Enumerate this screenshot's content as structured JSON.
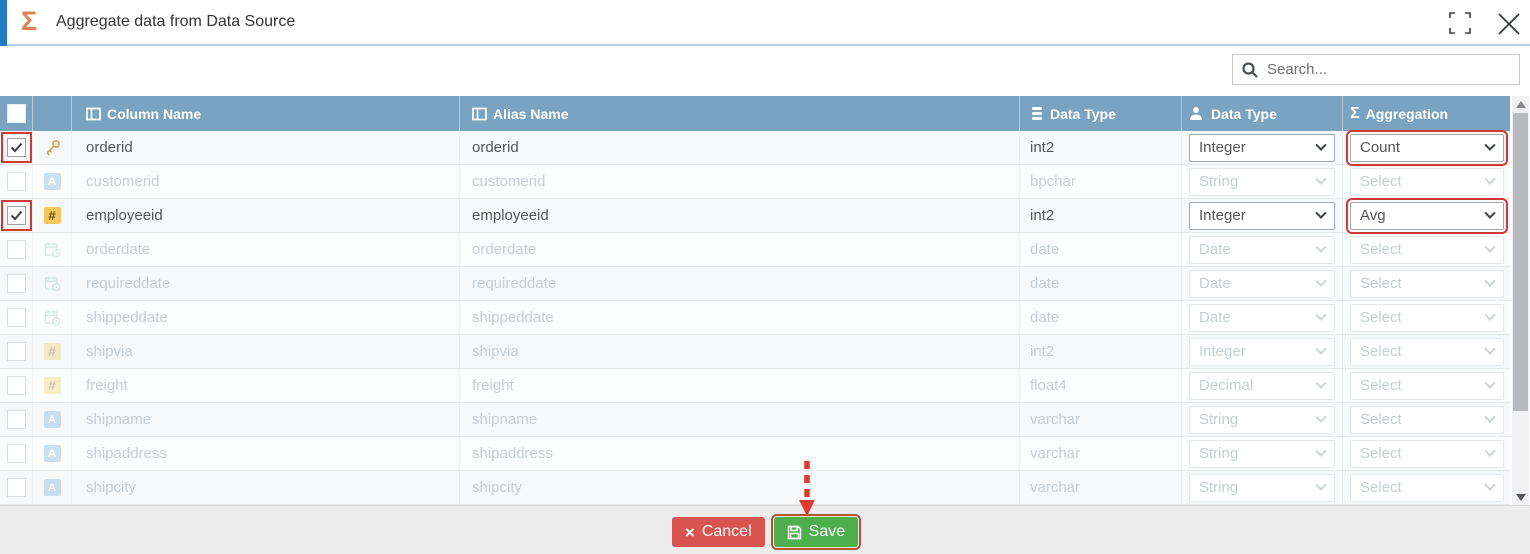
{
  "dialog": {
    "title": "Aggregate data from Data Source",
    "sigma_icon": "Σ"
  },
  "search": {
    "placeholder": "Search..."
  },
  "table": {
    "headers": {
      "column_name": "Column Name",
      "alias_name": "Alias Name",
      "data_type_source": "Data Type",
      "data_type_target": "Data Type",
      "aggregation": "Aggregation",
      "aggregation_icon": "Σ"
    },
    "rows": [
      {
        "column_name": "orderid",
        "alias_name": "orderid",
        "data_type": "int2",
        "data_type_selected": "Integer",
        "aggregation": "Count",
        "checked": true,
        "highlighted": true,
        "icon": "key"
      },
      {
        "column_name": "customerid",
        "alias_name": "customerid",
        "data_type": "bpchar",
        "data_type_selected": "String",
        "aggregation": "Select",
        "checked": false,
        "highlighted": false,
        "icon": "text"
      },
      {
        "column_name": "employeeid",
        "alias_name": "employeeid",
        "data_type": "int2",
        "data_type_selected": "Integer",
        "aggregation": "Avg",
        "checked": true,
        "highlighted": true,
        "icon": "number"
      },
      {
        "column_name": "orderdate",
        "alias_name": "orderdate",
        "data_type": "date",
        "data_type_selected": "Date",
        "aggregation": "Select",
        "checked": false,
        "highlighted": false,
        "icon": "date"
      },
      {
        "column_name": "requireddate",
        "alias_name": "requireddate",
        "data_type": "date",
        "data_type_selected": "Date",
        "aggregation": "Select",
        "checked": false,
        "highlighted": false,
        "icon": "date"
      },
      {
        "column_name": "shippeddate",
        "alias_name": "shippeddate",
        "data_type": "date",
        "data_type_selected": "Date",
        "aggregation": "Select",
        "checked": false,
        "highlighted": false,
        "icon": "date"
      },
      {
        "column_name": "shipvia",
        "alias_name": "shipvia",
        "data_type": "int2",
        "data_type_selected": "Integer",
        "aggregation": "Select",
        "checked": false,
        "highlighted": false,
        "icon": "number"
      },
      {
        "column_name": "freight",
        "alias_name": "freight",
        "data_type": "float4",
        "data_type_selected": "Decimal",
        "aggregation": "Select",
        "checked": false,
        "highlighted": false,
        "icon": "number"
      },
      {
        "column_name": "shipname",
        "alias_name": "shipname",
        "data_type": "varchar",
        "data_type_selected": "String",
        "aggregation": "Select",
        "checked": false,
        "highlighted": false,
        "icon": "text"
      },
      {
        "column_name": "shipaddress",
        "alias_name": "shipaddress",
        "data_type": "varchar",
        "data_type_selected": "String",
        "aggregation": "Select",
        "checked": false,
        "highlighted": false,
        "icon": "text"
      },
      {
        "column_name": "shipcity",
        "alias_name": "shipcity",
        "data_type": "varchar",
        "data_type_selected": "String",
        "aggregation": "Select",
        "checked": false,
        "highlighted": false,
        "icon": "text"
      }
    ]
  },
  "footer": {
    "cancel_label": "Cancel",
    "cancel_icon": "×",
    "save_label": "Save"
  },
  "colors": {
    "accent_blue": "#1e7bc4",
    "header_bg": "#79a3c1",
    "sigma_orange": "#dd8452",
    "annotation_red": "#cf3a32",
    "cancel_red": "#d9534f",
    "save_green": "#4cae4c"
  }
}
